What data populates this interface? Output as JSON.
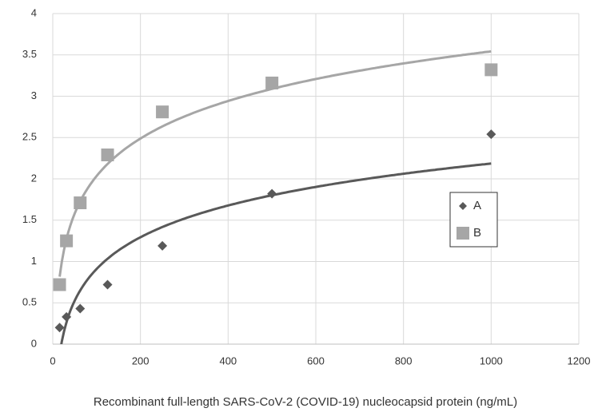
{
  "chart_data": {
    "type": "scatter",
    "x_label": "Recombinant full-length SARS-CoV-2 (COVID-19) nucleocapsid protein  (ng/mL)",
    "x": [
      15.6,
      31.25,
      62.5,
      125,
      250,
      500,
      1000
    ],
    "series": [
      {
        "name": "A",
        "color": "#595959",
        "marker": "diamond",
        "values": [
          0.2,
          0.33,
          0.43,
          0.72,
          1.19,
          1.82,
          2.54
        ]
      },
      {
        "name": "B",
        "color": "#a6a6a6",
        "marker": "square",
        "values": [
          0.72,
          1.25,
          1.71,
          2.29,
          2.81,
          3.16,
          3.32
        ]
      }
    ],
    "trendline": "logarithmic",
    "xlim": [
      0,
      1200
    ],
    "xticks": [
      0,
      200,
      400,
      600,
      800,
      1000,
      1200
    ],
    "ylim": [
      0,
      4
    ],
    "yticks": [
      0,
      0.5,
      1,
      1.5,
      2,
      2.5,
      3,
      3.5,
      4
    ],
    "grid": true,
    "legend": "right"
  }
}
